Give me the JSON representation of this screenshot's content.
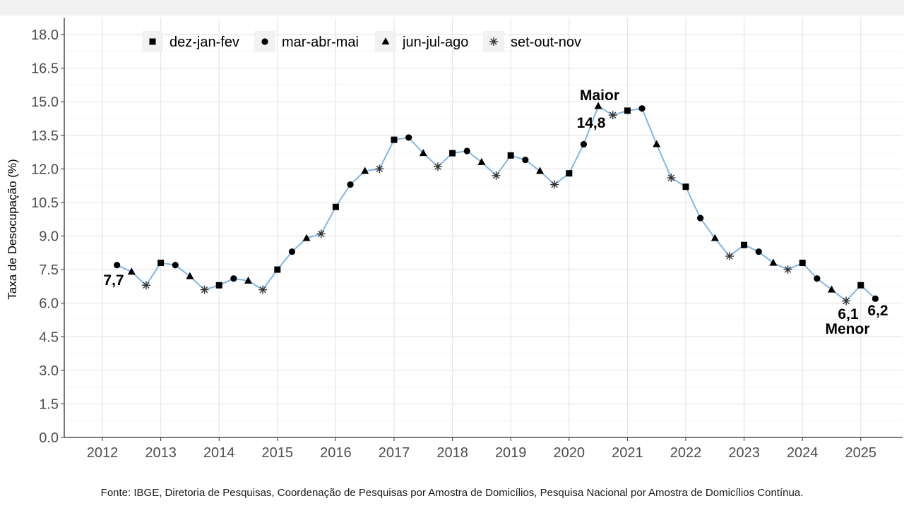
{
  "chart_data": {
    "type": "line",
    "ylabel": "Taxa de Desocupação (%)",
    "xlabel": "",
    "ylim": [
      0,
      18
    ],
    "yticks": [
      "0.0",
      "1.5",
      "3.0",
      "4.5",
      "6.0",
      "7.5",
      "9.0",
      "10.5",
      "12.0",
      "13.5",
      "15.0",
      "16.5",
      "18.0"
    ],
    "xticks": [
      "2012",
      "2013",
      "2014",
      "2015",
      "2016",
      "2017",
      "2018",
      "2019",
      "2020",
      "2021",
      "2022",
      "2023",
      "2024",
      "2025"
    ],
    "grid": true,
    "legend_position": "top-left",
    "line_color": "#7fb6e6",
    "legend": [
      {
        "shape": "square",
        "label": "dez-jan-fev"
      },
      {
        "shape": "circle",
        "label": "mar-abr-mai"
      },
      {
        "shape": "triangle",
        "label": "jun-jul-ago"
      },
      {
        "shape": "asterisk",
        "label": "set-out-nov"
      }
    ],
    "series": [
      {
        "x": 2012.25,
        "y": 7.7,
        "shape": "circle"
      },
      {
        "x": 2012.5,
        "y": 7.4,
        "shape": "triangle"
      },
      {
        "x": 2012.75,
        "y": 6.8,
        "shape": "asterisk"
      },
      {
        "x": 2013.0,
        "y": 7.8,
        "shape": "square"
      },
      {
        "x": 2013.25,
        "y": 7.7,
        "shape": "circle"
      },
      {
        "x": 2013.5,
        "y": 7.2,
        "shape": "triangle"
      },
      {
        "x": 2013.75,
        "y": 6.6,
        "shape": "asterisk"
      },
      {
        "x": 2014.0,
        "y": 6.8,
        "shape": "square"
      },
      {
        "x": 2014.25,
        "y": 7.1,
        "shape": "circle"
      },
      {
        "x": 2014.5,
        "y": 7.0,
        "shape": "triangle"
      },
      {
        "x": 2014.75,
        "y": 6.6,
        "shape": "asterisk"
      },
      {
        "x": 2015.0,
        "y": 7.5,
        "shape": "square"
      },
      {
        "x": 2015.25,
        "y": 8.3,
        "shape": "circle"
      },
      {
        "x": 2015.5,
        "y": 8.9,
        "shape": "triangle"
      },
      {
        "x": 2015.75,
        "y": 9.1,
        "shape": "asterisk"
      },
      {
        "x": 2016.0,
        "y": 10.3,
        "shape": "square"
      },
      {
        "x": 2016.25,
        "y": 11.3,
        "shape": "circle"
      },
      {
        "x": 2016.5,
        "y": 11.9,
        "shape": "triangle"
      },
      {
        "x": 2016.75,
        "y": 12.0,
        "shape": "asterisk"
      },
      {
        "x": 2017.0,
        "y": 13.3,
        "shape": "square"
      },
      {
        "x": 2017.25,
        "y": 13.4,
        "shape": "circle"
      },
      {
        "x": 2017.5,
        "y": 12.7,
        "shape": "triangle"
      },
      {
        "x": 2017.75,
        "y": 12.1,
        "shape": "asterisk"
      },
      {
        "x": 2018.0,
        "y": 12.7,
        "shape": "square"
      },
      {
        "x": 2018.25,
        "y": 12.8,
        "shape": "circle"
      },
      {
        "x": 2018.5,
        "y": 12.3,
        "shape": "triangle"
      },
      {
        "x": 2018.75,
        "y": 11.7,
        "shape": "asterisk"
      },
      {
        "x": 2019.0,
        "y": 12.6,
        "shape": "square"
      },
      {
        "x": 2019.25,
        "y": 12.4,
        "shape": "circle"
      },
      {
        "x": 2019.5,
        "y": 11.9,
        "shape": "triangle"
      },
      {
        "x": 2019.75,
        "y": 11.3,
        "shape": "asterisk"
      },
      {
        "x": 2020.0,
        "y": 11.8,
        "shape": "square"
      },
      {
        "x": 2020.25,
        "y": 13.1,
        "shape": "circle"
      },
      {
        "x": 2020.5,
        "y": 14.8,
        "shape": "triangle"
      },
      {
        "x": 2020.75,
        "y": 14.4,
        "shape": "asterisk"
      },
      {
        "x": 2021.0,
        "y": 14.6,
        "shape": "square"
      },
      {
        "x": 2021.25,
        "y": 14.7,
        "shape": "circle"
      },
      {
        "x": 2021.5,
        "y": 13.1,
        "shape": "triangle"
      },
      {
        "x": 2021.75,
        "y": 11.6,
        "shape": "asterisk"
      },
      {
        "x": 2022.0,
        "y": 11.2,
        "shape": "square"
      },
      {
        "x": 2022.25,
        "y": 9.8,
        "shape": "circle"
      },
      {
        "x": 2022.5,
        "y": 8.9,
        "shape": "triangle"
      },
      {
        "x": 2022.75,
        "y": 8.1,
        "shape": "asterisk"
      },
      {
        "x": 2023.0,
        "y": 8.6,
        "shape": "square"
      },
      {
        "x": 2023.25,
        "y": 8.3,
        "shape": "circle"
      },
      {
        "x": 2023.5,
        "y": 7.8,
        "shape": "triangle"
      },
      {
        "x": 2023.75,
        "y": 7.5,
        "shape": "asterisk"
      },
      {
        "x": 2024.0,
        "y": 7.8,
        "shape": "square"
      },
      {
        "x": 2024.25,
        "y": 7.1,
        "shape": "circle"
      },
      {
        "x": 2024.5,
        "y": 6.6,
        "shape": "triangle"
      },
      {
        "x": 2024.75,
        "y": 6.1,
        "shape": "asterisk"
      },
      {
        "x": 2025.0,
        "y": 6.8,
        "shape": "square"
      },
      {
        "x": 2025.25,
        "y": 6.2,
        "shape": "circle"
      }
    ],
    "annotations": {
      "first_value": "7,7",
      "max_label": "Maior",
      "max_value": "14,8",
      "min_value": "6,1",
      "min_label": "Menor",
      "last_value": "6,2"
    }
  },
  "source": "Fonte: IBGE, Diretoria de Pesquisas, Coordenação de Pesquisas por Amostra de Domicílios, Pesquisa Nacional por Amostra de Domicílios Contínua."
}
